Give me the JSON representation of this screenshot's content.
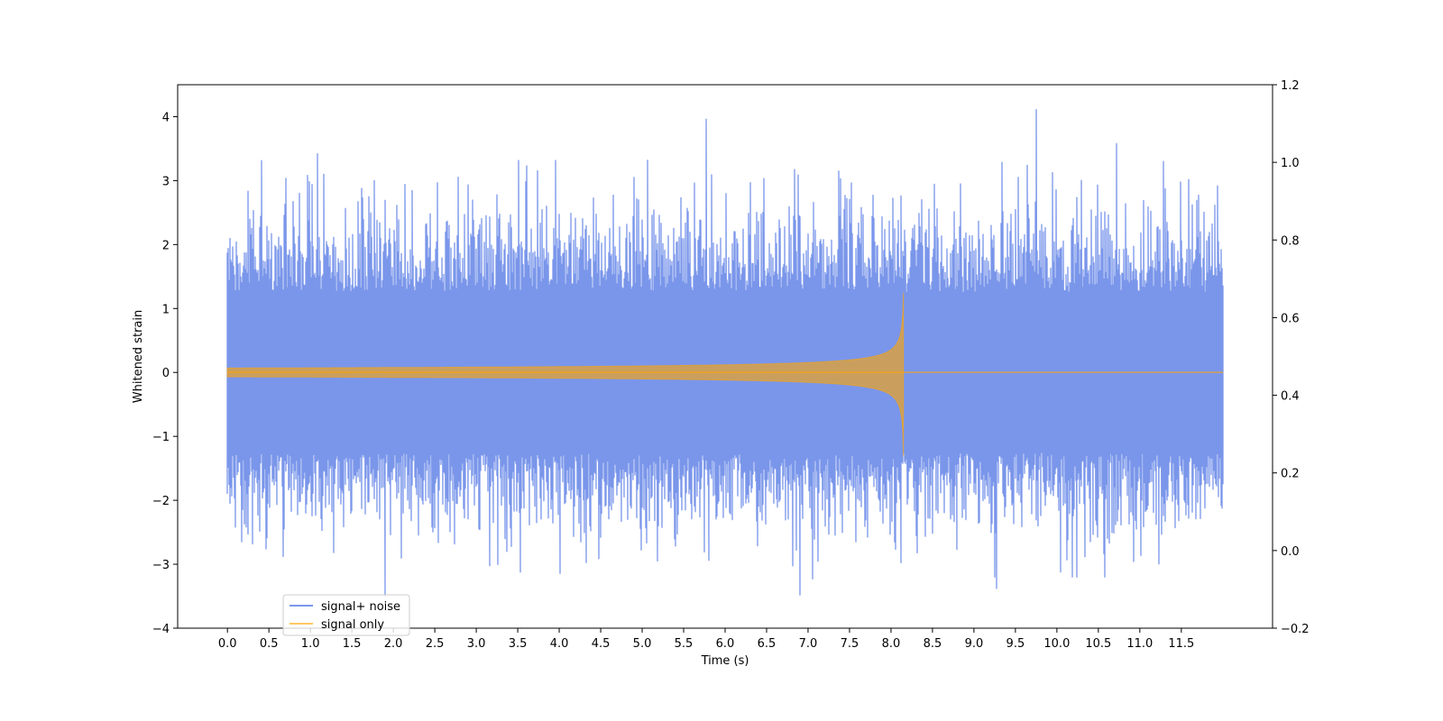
{
  "chart_data": {
    "type": "line",
    "xlabel": "Time (s)",
    "ylabel": "Whitened strain",
    "xlim": [
      -0.6,
      12.6
    ],
    "ylim": [
      -4,
      4.5
    ],
    "y2lim": [
      -0.2,
      1.2
    ],
    "x_ticks": [
      0.0,
      0.5,
      1.0,
      1.5,
      2.0,
      2.5,
      3.0,
      3.5,
      4.0,
      4.5,
      5.0,
      5.5,
      6.0,
      6.5,
      7.0,
      7.5,
      8.0,
      8.5,
      9.0,
      9.5,
      10.0,
      10.5,
      11.0,
      11.5
    ],
    "x_tick_labels": [
      "0.0",
      "0.5",
      "1.0",
      "1.5",
      "2.0",
      "2.5",
      "3.0",
      "3.5",
      "4.0",
      "4.5",
      "5.0",
      "5.5",
      "6.0",
      "6.5",
      "7.0",
      "7.5",
      "8.0",
      "8.5",
      "9.0",
      "9.5",
      "10.0",
      "10.5",
      "11.0",
      "11.5"
    ],
    "y_ticks": [
      -4,
      -3,
      -2,
      -1,
      0,
      1,
      2,
      3,
      4
    ],
    "y_tick_labels": [
      "−4",
      "−3",
      "−2",
      "−1",
      "0",
      "1",
      "2",
      "3",
      "4"
    ],
    "y2_ticks": [
      -0.2,
      0.0,
      0.2,
      0.4,
      0.6,
      0.8,
      1.0,
      1.2
    ],
    "y2_tick_labels": [
      "−0.2",
      "0.0",
      "0.2",
      "0.4",
      "0.6",
      "0.8",
      "1.0",
      "1.2"
    ],
    "legend_placement": "lower-left",
    "grid": false,
    "series": [
      {
        "name": "signal+ noise",
        "color": "#4169e1",
        "opacity": 0.7,
        "kind": "gaussian noise plus signal",
        "x_range": [
          0.0,
          12.0
        ],
        "sigma": 1.0,
        "peak_values": [
          {
            "x": 1.08,
            "y": 3.42
          },
          {
            "x": 1.9,
            "y": -3.5
          },
          {
            "x": 5.77,
            "y": 3.96
          },
          {
            "x": 6.9,
            "y": -3.48
          },
          {
            "x": 9.27,
            "y": -3.38
          },
          {
            "x": 9.75,
            "y": 4.11
          },
          {
            "x": 10.72,
            "y": 3.58
          }
        ]
      },
      {
        "name": "signal only",
        "color": "#ffa500",
        "opacity": 0.6,
        "kind": "chirp",
        "x_range": [
          0.0,
          12.0
        ],
        "merger_time": 8.15,
        "peak_amplitude": 1.25,
        "post_merger_value": 0.0
      }
    ]
  }
}
